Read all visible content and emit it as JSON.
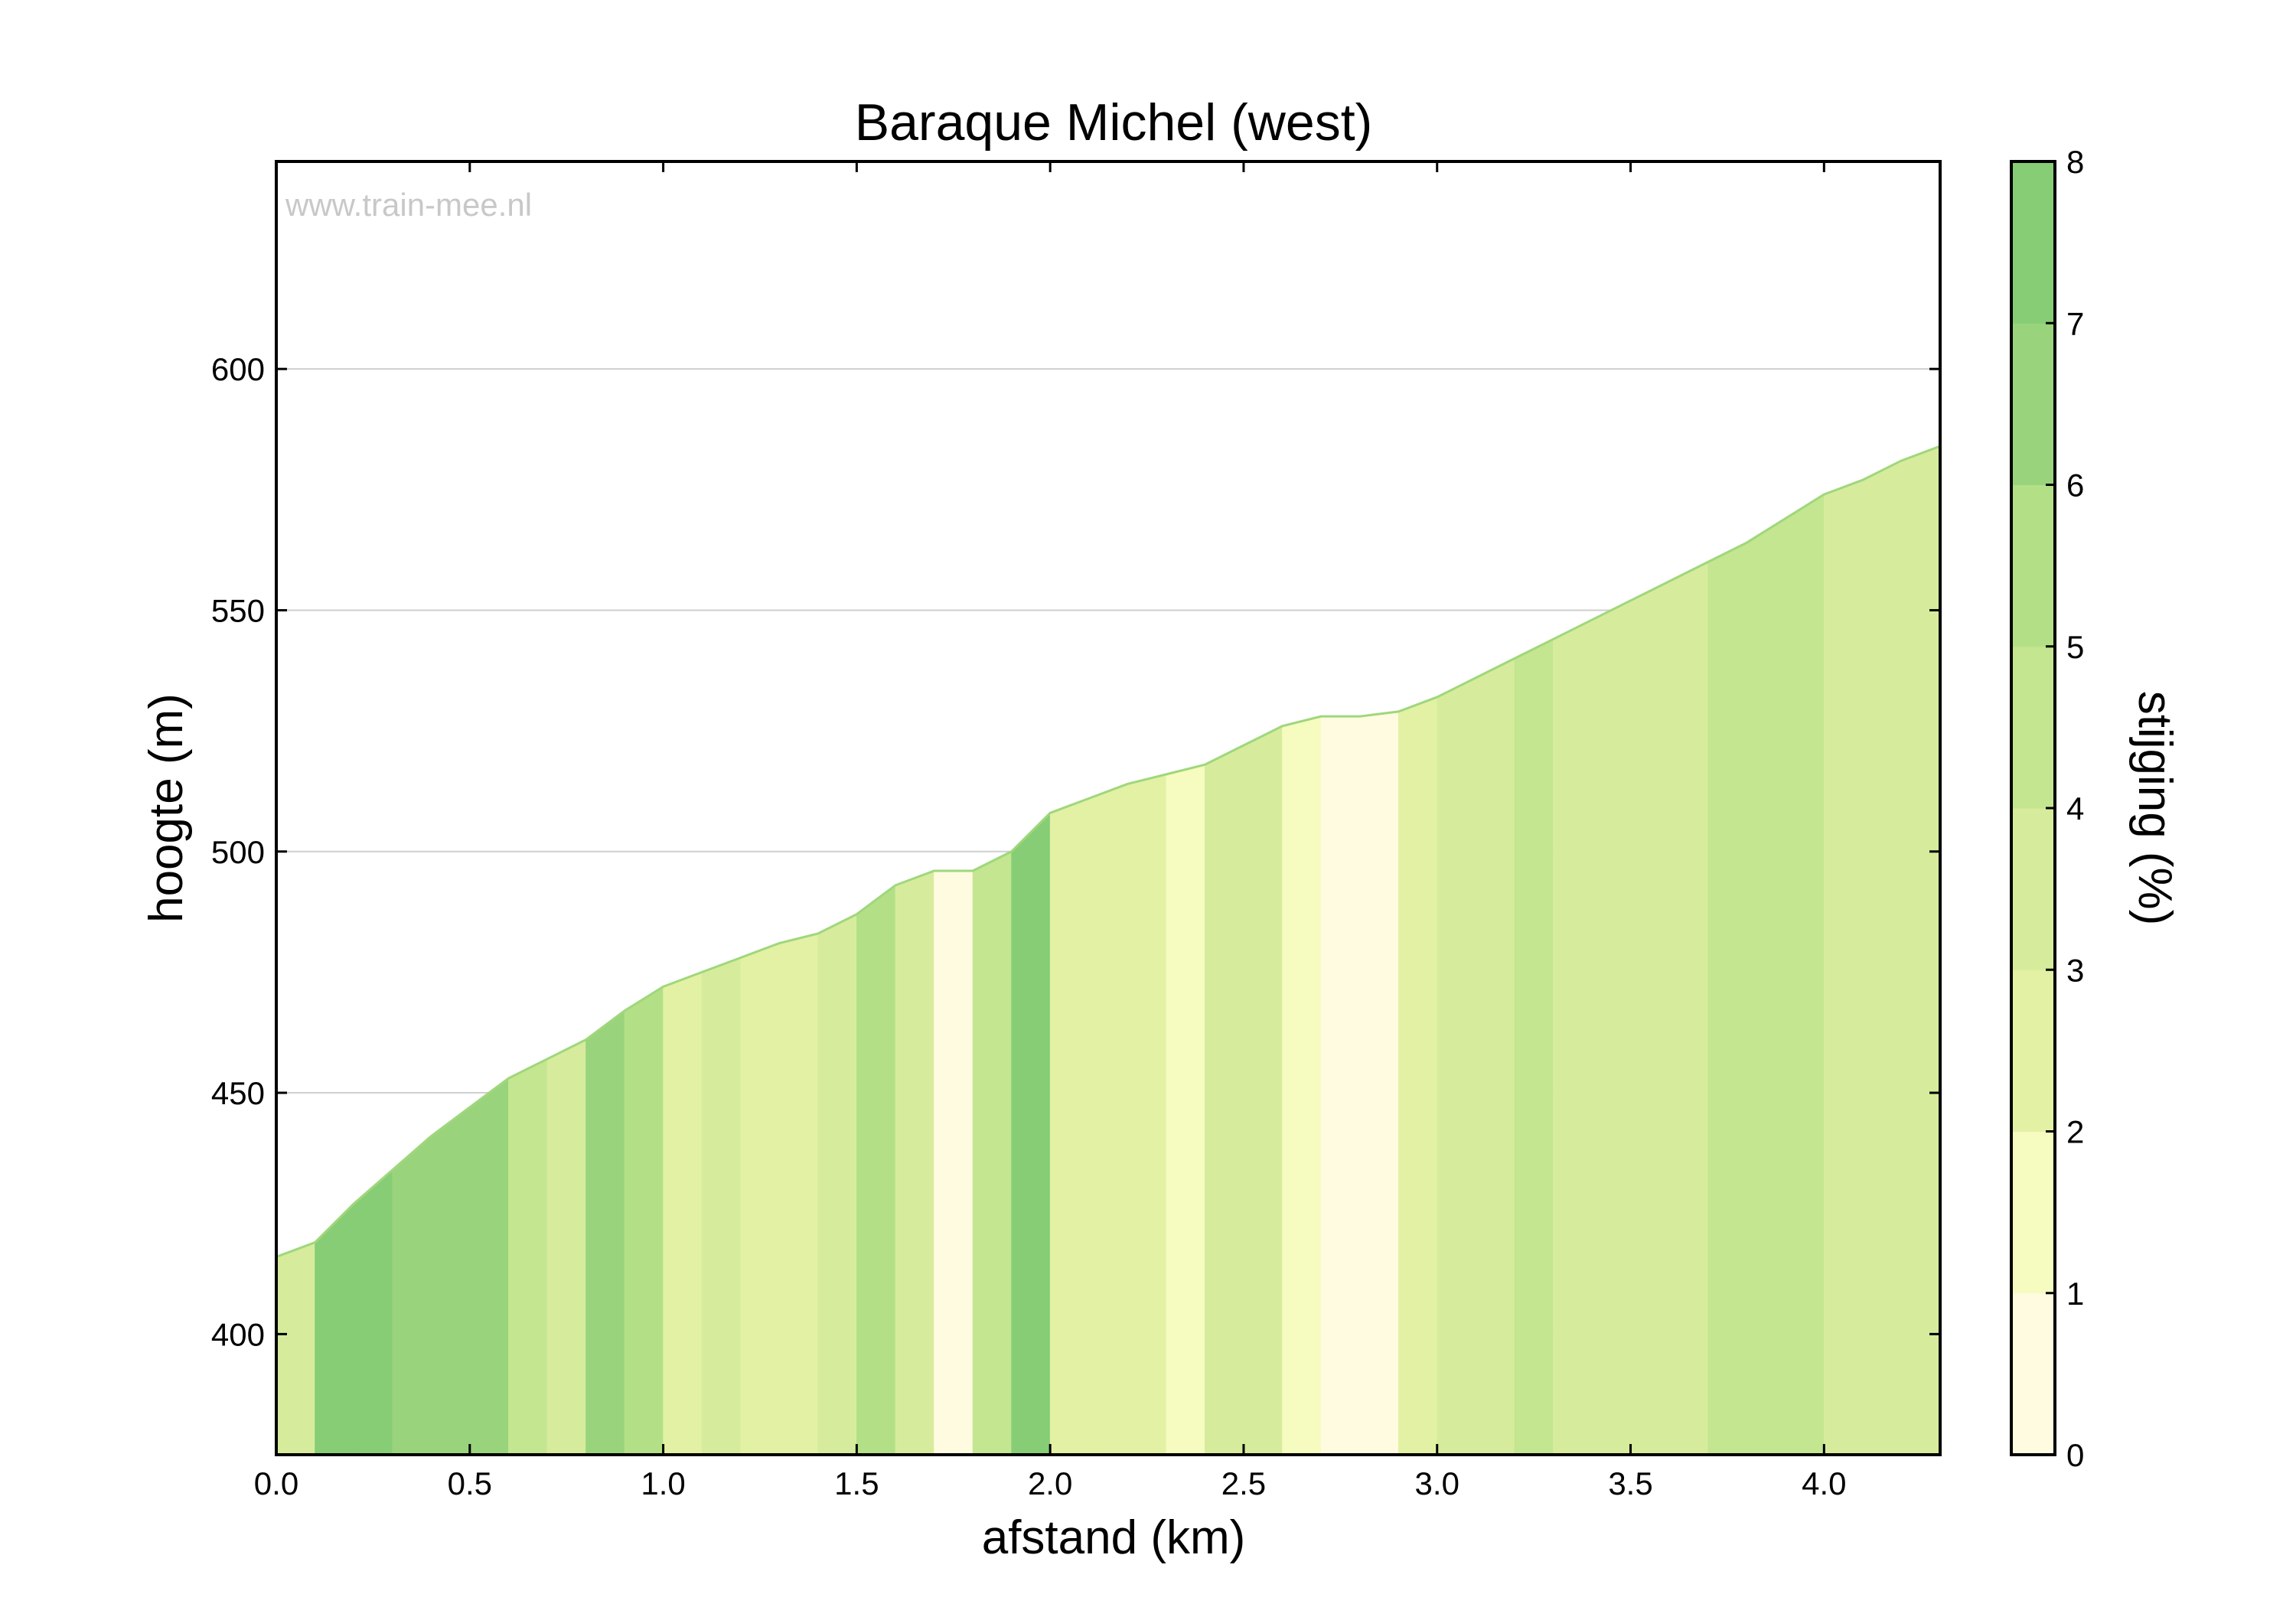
{
  "chart_data": {
    "type": "area",
    "title": "Baraque Michel (west)",
    "xlabel": "afstand (km)",
    "ylabel": "hoogte (m)",
    "xlim": [
      0.0,
      4.3
    ],
    "ylim": [
      375,
      643
    ],
    "xticks": [
      0.0,
      0.5,
      1.0,
      1.5,
      2.0,
      2.5,
      3.0,
      3.5,
      4.0
    ],
    "xtick_labels": [
      "0.0",
      "0.5",
      "1.0",
      "1.5",
      "2.0",
      "2.5",
      "3.0",
      "3.5",
      "4.0"
    ],
    "yticks": [
      400,
      450,
      500,
      550,
      600
    ],
    "ytick_labels": [
      "400",
      "450",
      "500",
      "550",
      "600"
    ],
    "grid": "horizontal",
    "watermark": "www.train-mee.nl",
    "profile": {
      "x": [
        0.0,
        0.1,
        0.2,
        0.3,
        0.4,
        0.5,
        0.6,
        0.7,
        0.8,
        0.9,
        1.0,
        1.1,
        1.2,
        1.3,
        1.4,
        1.5,
        1.6,
        1.7,
        1.8,
        1.9,
        2.0,
        2.1,
        2.2,
        2.3,
        2.4,
        2.5,
        2.6,
        2.7,
        2.8,
        2.9,
        3.0,
        3.1,
        3.2,
        3.3,
        3.4,
        3.5,
        3.6,
        3.7,
        3.8,
        3.9,
        4.0,
        4.1,
        4.2,
        4.3
      ],
      "elevation": [
        416,
        419,
        427,
        434,
        441,
        447,
        453,
        457,
        461,
        467,
        472,
        475,
        478,
        481,
        483,
        487,
        493,
        496,
        496,
        500,
        508,
        511,
        514,
        516,
        518,
        522,
        526,
        528,
        528,
        529,
        532,
        536,
        540,
        544,
        548,
        552,
        556,
        560,
        564,
        569,
        574,
        577,
        581,
        584
      ]
    },
    "colorbar": {
      "label": "stijging (%)",
      "range": [
        0,
        8
      ],
      "ticks": [
        0,
        1,
        2,
        3,
        4,
        5,
        6,
        7,
        8
      ],
      "tick_labels": [
        "0",
        "1",
        "2",
        "3",
        "4",
        "5",
        "6",
        "7",
        "8"
      ],
      "colors": [
        "#fefbe0",
        "#f6fbbf",
        "#e3f1a4",
        "#d6ec9c",
        "#c4e690",
        "#b3e087",
        "#99d47d",
        "#86cd76"
      ]
    },
    "colors": {
      "line": "#9fd77c",
      "grid": "#cfcfcf",
      "frame": "#000000"
    }
  }
}
